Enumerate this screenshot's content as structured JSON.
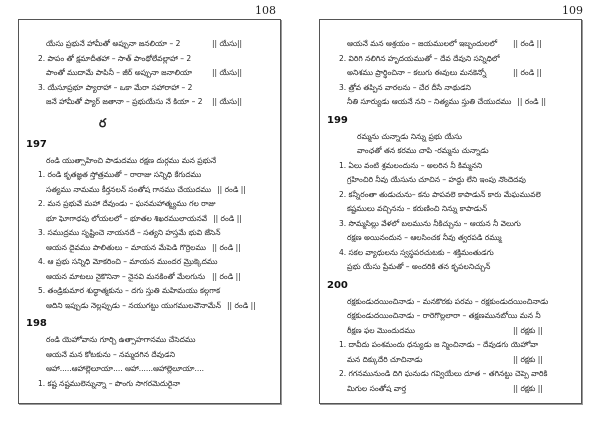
{
  "pages": [
    {
      "number": "108",
      "lines": [
        {
          "type": "line",
          "indent": 1,
          "text": "యేసు ప్రభునే హామీతో అప్పునా జనలియా – 2",
          "refrain": "|| యేసు||"
        },
        {
          "type": "line",
          "indent": 0,
          "text": "2. పాపం తో క్షమాదీతహా – సాత్ పాంథోలేవల్లాహా – 2",
          "refrain": ""
        },
        {
          "type": "line",
          "indent": 1,
          "text": "పాంతో ముదామే పాపినీ – జీర్ అప్పునా జనాలియా",
          "refrain": "|| యేసు||"
        },
        {
          "type": "line",
          "indent": 0,
          "text": "3. యేసూప్రభూ ప్యారాహా – ఒకా మేరా సహారాహా – 2",
          "refrain": ""
        },
        {
          "type": "line",
          "indent": 1,
          "text": "జనే హామీతో ప్యార్ జతానా – ప్రభుయేసు నే కియా – 2",
          "refrain": "|| యేసు||"
        },
        {
          "type": "letter",
          "text": "ర"
        },
        {
          "type": "heading",
          "text": "197"
        },
        {
          "type": "line",
          "indent": 1,
          "text": "రండి యుత్సాహించి పాడుదము రక్షణ దుర్గము మన ప్రభునే",
          "refrain": ""
        },
        {
          "type": "line",
          "indent": 0,
          "text": "1. రండి కృతజ్ఞత స్తోత్రముతో – రారాజు సన్నిధి కేగుదము",
          "refrain": ""
        },
        {
          "type": "line",
          "indent": 1,
          "text": "సత్యము నామము కీర్తనలన్ సంతోష గానము చేయుదము",
          "refrain": "|| రండి ||"
        },
        {
          "type": "line",
          "indent": 0,
          "text": "2. మన ప్రభువే మహా దేవుండు – ఘనమహాత్మ్యము గల రాజు",
          "refrain": ""
        },
        {
          "type": "line",
          "indent": 1,
          "text": "భూ ఘోగాధపు లోయలలో – భూతల శిఖరములాయనవే",
          "refrain": "|| రండి ||"
        },
        {
          "type": "line",
          "indent": 0,
          "text": "3. సముద్రము సృష్టించె నాయనదే – సత్యని హస్తమే భువి జేసెన్",
          "refrain": ""
        },
        {
          "type": "line",
          "indent": 1,
          "text": "ఆయన దైవము పాలితులు – మాయన మేపెడి గొర్రెలము",
          "refrain": "|| రండి ||"
        },
        {
          "type": "line",
          "indent": 0,
          "text": "4. ఆ ప్రభు సన్నిధి మోకరించి – మాయన ముందర మ్రొక్కెదము",
          "refrain": ""
        },
        {
          "type": "line",
          "indent": 1,
          "text": "ఆయన మాటలు నైకొనినా – నైనవి మనకింతో మేలగును",
          "refrain": "|| రండి ||"
        },
        {
          "type": "line",
          "indent": 0,
          "text": "5. తండ్రికుమార శుద్ధాత్మకును – దగు స్తుతి మహిమయు కల్గగాక",
          "refrain": ""
        },
        {
          "type": "line",
          "indent": 1,
          "text": "ఆదిని ఇప్పుడు నెల్లప్పుడు – నయుగట్టు యుగములవౌనామేన్",
          "refrain": "|| రండి ||"
        },
        {
          "type": "heading",
          "text": "198"
        },
        {
          "type": "line",
          "indent": 1,
          "text": "రండి యెహోవాను గూర్చి ఉత్సాహగానము చేసెదము",
          "refrain": ""
        },
        {
          "type": "line",
          "indent": 1,
          "text": "ఆయనే మన కోటకును – నమ్మదగిన దేవుడని",
          "refrain": ""
        },
        {
          "type": "line",
          "indent": 1,
          "text": "ఆహా.....ఆహాల్లెలూయా.... ఆహా......ఆహాల్లెలూయా....",
          "refrain": ""
        },
        {
          "type": "line",
          "indent": 0,
          "text": "1. కష్ట నష్టములెన్నున్నా – పొంగు సాగరమెదురైనా",
          "refrain": ""
        }
      ]
    },
    {
      "number": "109",
      "lines": [
        {
          "type": "line",
          "indent": 1,
          "text": "ఆయనే మన ఆశ్రయం – జయములలో ఇబ్బందులలో",
          "refrain": "|| రండి ||"
        },
        {
          "type": "line",
          "indent": 0,
          "text": "2. విరిగి నలిగిన హృదయముతో – దేవ దేవుని సన్నిధిలో",
          "refrain": ""
        },
        {
          "type": "line",
          "indent": 1,
          "text": "అనిశము ప్రార్థించినా – కలుగు ఈవులు మనకెన్నో",
          "refrain": "|| రండి ||"
        },
        {
          "type": "line",
          "indent": 0,
          "text": "3. త్రోవ తప్పిన వారలను – చేర దీసే నాథుడని",
          "refrain": ""
        },
        {
          "type": "line",
          "indent": 1,
          "text": "నీతి సూర్యుడు ఆయనే నని – నిత్యము స్తుతి చేయుదము",
          "refrain": "|| రండి ||"
        },
        {
          "type": "heading",
          "text": "199"
        },
        {
          "type": "line",
          "indent": 2,
          "text": "రమ్మను చున్నాడు నిన్ను ప్రభు యేసు",
          "refrain": ""
        },
        {
          "type": "line",
          "indent": 2,
          "text": "వాంఛతో తన కరము చాపి -రమ్మను చున్నాడు",
          "refrain": ""
        },
        {
          "type": "line",
          "indent": 0,
          "text": "1. ఏలు వంటి శ్రమలందును – అలరిన నీ కిమ్మనని",
          "refrain": ""
        },
        {
          "type": "line",
          "indent": 1,
          "text": "గ్రహించిరి నీవు యేసును చూచిన – హద్దు లేని ఇంపు నొందెదవు",
          "refrain": ""
        },
        {
          "type": "line",
          "indent": 0,
          "text": "2. కన్నీరంతా తుడుచును– కను పాపవలె కాపాడున్ కారు మేఘమువలె",
          "refrain": ""
        },
        {
          "type": "line",
          "indent": 1,
          "text": "కష్టములు వచ్చినను – కరుణించి నిన్ను కాపాడున్",
          "refrain": ""
        },
        {
          "type": "line",
          "indent": 0,
          "text": "3. సొమ్మసిల్లు వేళలో బలమును నీకిచ్చును – ఆయన నీ వెలుగు",
          "refrain": ""
        },
        {
          "type": "line",
          "indent": 1,
          "text": "రక్షణ అయినందున – ఆలసించక నీవు త్వరపడి రమ్ము",
          "refrain": ""
        },
        {
          "type": "line",
          "indent": 0,
          "text": "4. సకల వ్యాధులను స్వస్థపరచుటకు – శక్తిమంతుడగు",
          "refrain": ""
        },
        {
          "type": "line",
          "indent": 1,
          "text": "ప్రభు యేసు ప్రేమతో – అందరికి తన కృపలనిచ్చున్",
          "refrain": ""
        },
        {
          "type": "heading",
          "text": "200"
        },
        {
          "type": "line",
          "indent": 1,
          "text": "రక్షకుండుదయించినాడు – మనకొరకు పరమ – రక్షకుండుదయించినాడు",
          "refrain": ""
        },
        {
          "type": "line",
          "indent": 1,
          "text": "రక్షకుండుదయించినాడు – రారెగొల్లలారా – తక్షణమునబోయి మన నీ",
          "refrain": ""
        },
        {
          "type": "line",
          "indent": 1,
          "text": "రీక్షణ ఫల మొందుదము",
          "refrain": "|| రక్షకు ||"
        },
        {
          "type": "line",
          "indent": 0,
          "text": "1. దావీదు పంశమందు ధన్యుడు జ న్మించినాడు – దేవుడగు యెహోవా",
          "refrain": ""
        },
        {
          "type": "line",
          "indent": 1,
          "text": "మన దిక్కుదేరి చూచినాడు",
          "refrain": "|| రక్షకు ||"
        },
        {
          "type": "line",
          "indent": 0,
          "text": "2. గగనమునుండి దిగి ఘనుడు గవ్వియేలు దూత – తగినట్టు చెప్పె వారికి",
          "refrain": ""
        },
        {
          "type": "line",
          "indent": 1,
          "text": "మిగుల సంతోష వార్త",
          "refrain": "|| రక్షకు ||"
        }
      ]
    }
  ]
}
